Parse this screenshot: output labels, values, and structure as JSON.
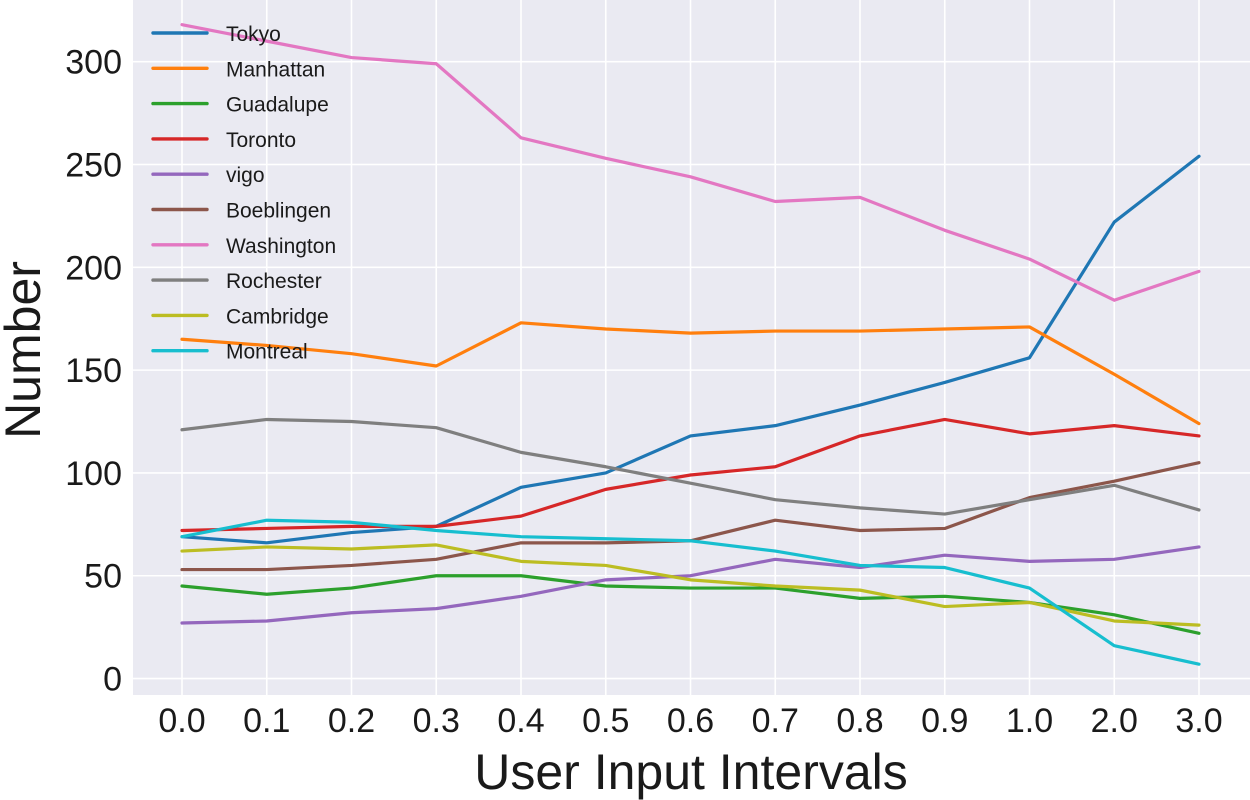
{
  "chart_data": {
    "type": "line",
    "title": "",
    "xlabel": "User Input Intervals",
    "ylabel": "Number",
    "categories": [
      "0.0",
      "0.1",
      "0.2",
      "0.3",
      "0.4",
      "0.5",
      "0.6",
      "0.7",
      "0.8",
      "0.9",
      "1.0",
      "2.0",
      "3.0"
    ],
    "ylim": [
      -8,
      330
    ],
    "yticks": [
      "0",
      "50",
      "100",
      "150",
      "200",
      "250",
      "300"
    ],
    "grid": true,
    "legend_position": "top-left",
    "background": "#eaeaf2",
    "series": [
      {
        "name": "Tokyo",
        "color": "#1f77b4",
        "values": [
          69,
          66,
          71,
          74,
          93,
          100,
          118,
          123,
          133,
          144,
          156,
          222,
          254
        ]
      },
      {
        "name": "Manhattan",
        "color": "#ff7f0e",
        "values": [
          165,
          162,
          158,
          152,
          173,
          170,
          168,
          169,
          169,
          170,
          171,
          148,
          124
        ]
      },
      {
        "name": "Guadalupe",
        "color": "#2ca02c",
        "values": [
          45,
          41,
          44,
          50,
          50,
          45,
          44,
          44,
          39,
          40,
          37,
          31,
          22
        ]
      },
      {
        "name": "Toronto",
        "color": "#d62728",
        "values": [
          72,
          73,
          74,
          74,
          79,
          92,
          99,
          103,
          118,
          126,
          119,
          123,
          118
        ]
      },
      {
        "name": "vigo",
        "color": "#9467bd",
        "values": [
          27,
          28,
          32,
          34,
          40,
          48,
          50,
          58,
          54,
          60,
          57,
          58,
          64
        ]
      },
      {
        "name": "Boeblingen",
        "color": "#8c564b",
        "values": [
          53,
          53,
          55,
          58,
          66,
          66,
          67,
          77,
          72,
          73,
          88,
          96,
          105
        ]
      },
      {
        "name": "Washington",
        "color": "#e377c2",
        "values": [
          318,
          310,
          302,
          299,
          263,
          253,
          244,
          232,
          234,
          218,
          204,
          184,
          198
        ]
      },
      {
        "name": "Rochester",
        "color": "#7f7f7f",
        "values": [
          121,
          126,
          125,
          122,
          110,
          103,
          95,
          87,
          83,
          80,
          87,
          94,
          82
        ]
      },
      {
        "name": "Cambridge",
        "color": "#bcbd22",
        "values": [
          62,
          64,
          63,
          65,
          57,
          55,
          48,
          45,
          43,
          35,
          37,
          28,
          26
        ]
      },
      {
        "name": "Montreal",
        "color": "#17becf",
        "values": [
          69,
          77,
          76,
          72,
          69,
          68,
          67,
          62,
          55,
          54,
          44,
          16,
          7
        ]
      }
    ]
  }
}
